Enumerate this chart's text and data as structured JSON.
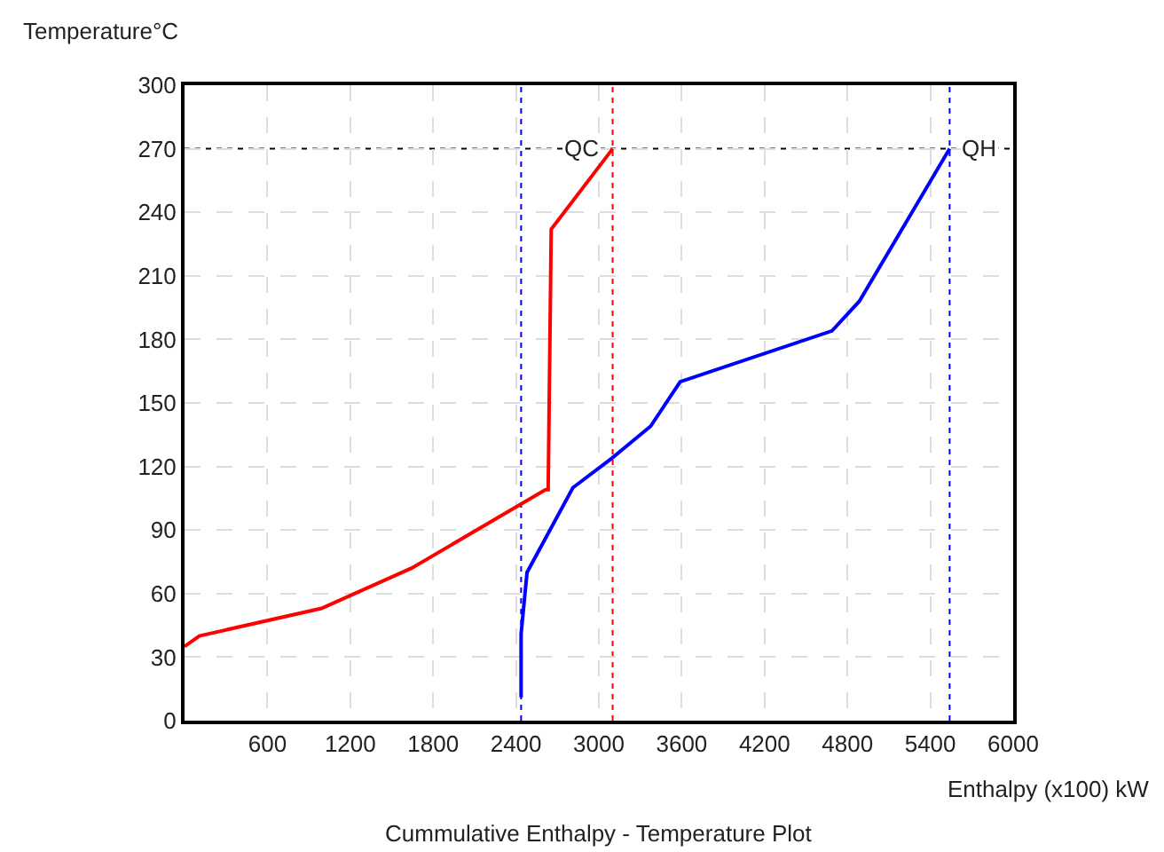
{
  "chart_data": {
    "type": "line",
    "title": "Cummulative Enthalpy - Temperature Plot",
    "xlabel": "Enthalpy (x100) kW",
    "ylabel": "Temperature°C",
    "xlim": [
      0,
      6000
    ],
    "xticks": [
      600,
      1200,
      1800,
      2400,
      3000,
      3600,
      4200,
      4800,
      5400,
      6000
    ],
    "ylim": [
      0,
      300
    ],
    "yticks": [
      0,
      30,
      60,
      90,
      120,
      150,
      180,
      210,
      240,
      270,
      300
    ],
    "grid": true,
    "marker": "none",
    "line_style": "solid",
    "series": [
      {
        "color": "#ff0000",
        "x": [
          0,
          107,
          991,
          1644,
          2614,
          2633,
          2655,
          3100
        ],
        "values": [
          35,
          40,
          53,
          72,
          109,
          109,
          232,
          270
        ]
      },
      {
        "color": "#0000ff",
        "x": [
          2437,
          2437,
          2480,
          2812,
          3096,
          3375,
          3589,
          4688,
          4886,
          5540
        ],
        "values": [
          11,
          41,
          70,
          110,
          124,
          139,
          160,
          184,
          198,
          270
        ]
      }
    ],
    "ref_lines": [
      {
        "axis": "x",
        "value": 2437,
        "color": "#0000ff",
        "line_style": "dotted"
      },
      {
        "axis": "x",
        "value": 3100,
        "color": "#ff0000",
        "line_style": "dotted"
      },
      {
        "axis": "x",
        "value": 5540,
        "color": "#0000ff",
        "line_style": "dotted"
      },
      {
        "axis": "y",
        "value": 270,
        "color": "#000000",
        "line_style": "dotted"
      }
    ],
    "annotations": [
      {
        "text": "QC",
        "x": 3100,
        "y": 270
      },
      {
        "text": "QH",
        "x": 5540,
        "y": 270
      }
    ]
  }
}
